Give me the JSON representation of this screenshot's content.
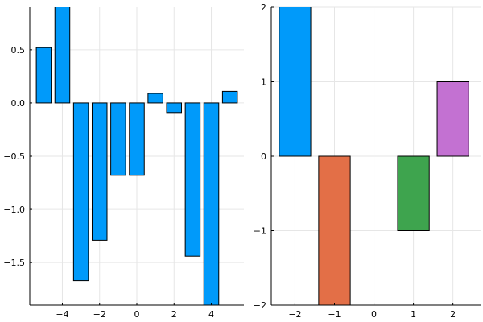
{
  "chart_data": [
    {
      "type": "bar",
      "title": "",
      "xlabel": "",
      "ylabel": "",
      "grid": true,
      "legend": "none",
      "xlim": [
        -5.75,
        5.75
      ],
      "ylim": [
        -1.9,
        0.9
      ],
      "xticks": [
        -4,
        -2,
        0,
        2,
        4
      ],
      "xtick_labels": [
        "−4",
        "−2",
        "0",
        "2",
        "4"
      ],
      "yticks": [
        -1.5,
        -1.0,
        -0.5,
        0.0,
        0.5
      ],
      "ytick_labels": [
        "−1.5",
        "−1.0",
        "−0.5",
        "0.0",
        "0.5"
      ],
      "bar_width": 0.8,
      "color": "#009AFA",
      "x": [
        -5,
        -4,
        -3,
        -2,
        -1,
        0,
        1,
        2,
        3,
        4,
        5
      ],
      "y": [
        0.52,
        0.96,
        -1.67,
        -1.29,
        -0.68,
        -0.68,
        0.09,
        -0.09,
        -1.44,
        -1.98,
        0.11
      ]
    },
    {
      "type": "bar",
      "title": "",
      "xlabel": "",
      "ylabel": "",
      "grid": true,
      "legend": "none",
      "xlim": [
        -2.6,
        2.7
      ],
      "ylim": [
        -2,
        2
      ],
      "xticks": [
        -2,
        -1,
        0,
        1,
        2
      ],
      "xtick_labels": [
        "−2",
        "−1",
        "0",
        "1",
        "2"
      ],
      "yticks": [
        -2,
        -1,
        0,
        1,
        2
      ],
      "ytick_labels": [
        "−2",
        "−1",
        "0",
        "1",
        "2"
      ],
      "bar_width": 0.8,
      "x": [
        -2,
        -1,
        0,
        1,
        2
      ],
      "y": [
        2.2,
        -2.4,
        0,
        -1,
        1
      ],
      "colors": [
        "#009AFA",
        "#E36F47",
        "#3EA44E",
        "#3EA44E",
        "#C371D2"
      ]
    }
  ]
}
